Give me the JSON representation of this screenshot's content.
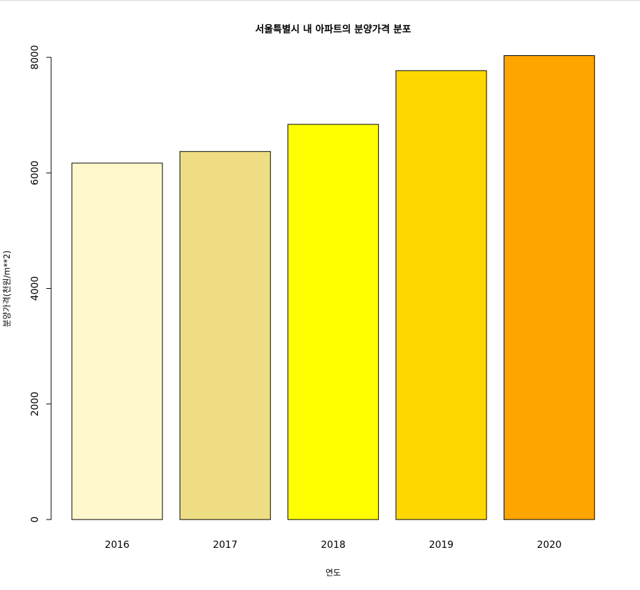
{
  "chart_data": {
    "type": "bar",
    "title": "서울특별시 내 아파트의 분양가격 분포",
    "xlabel": "연도",
    "ylabel": "분양가격(천원/m**2)",
    "categories": [
      "2016",
      "2017",
      "2018",
      "2019",
      "2020"
    ],
    "values": [
      6170,
      6370,
      6840,
      7770,
      8030
    ],
    "colors": [
      "#FFF8CC",
      "#EEDD82",
      "#FFFF00",
      "#FFD700",
      "#FFA500"
    ],
    "ylim": [
      0,
      8000
    ],
    "yticks": [
      "0",
      "2000",
      "4000",
      "6000",
      "8000"
    ],
    "grid": false,
    "legend": "none"
  }
}
